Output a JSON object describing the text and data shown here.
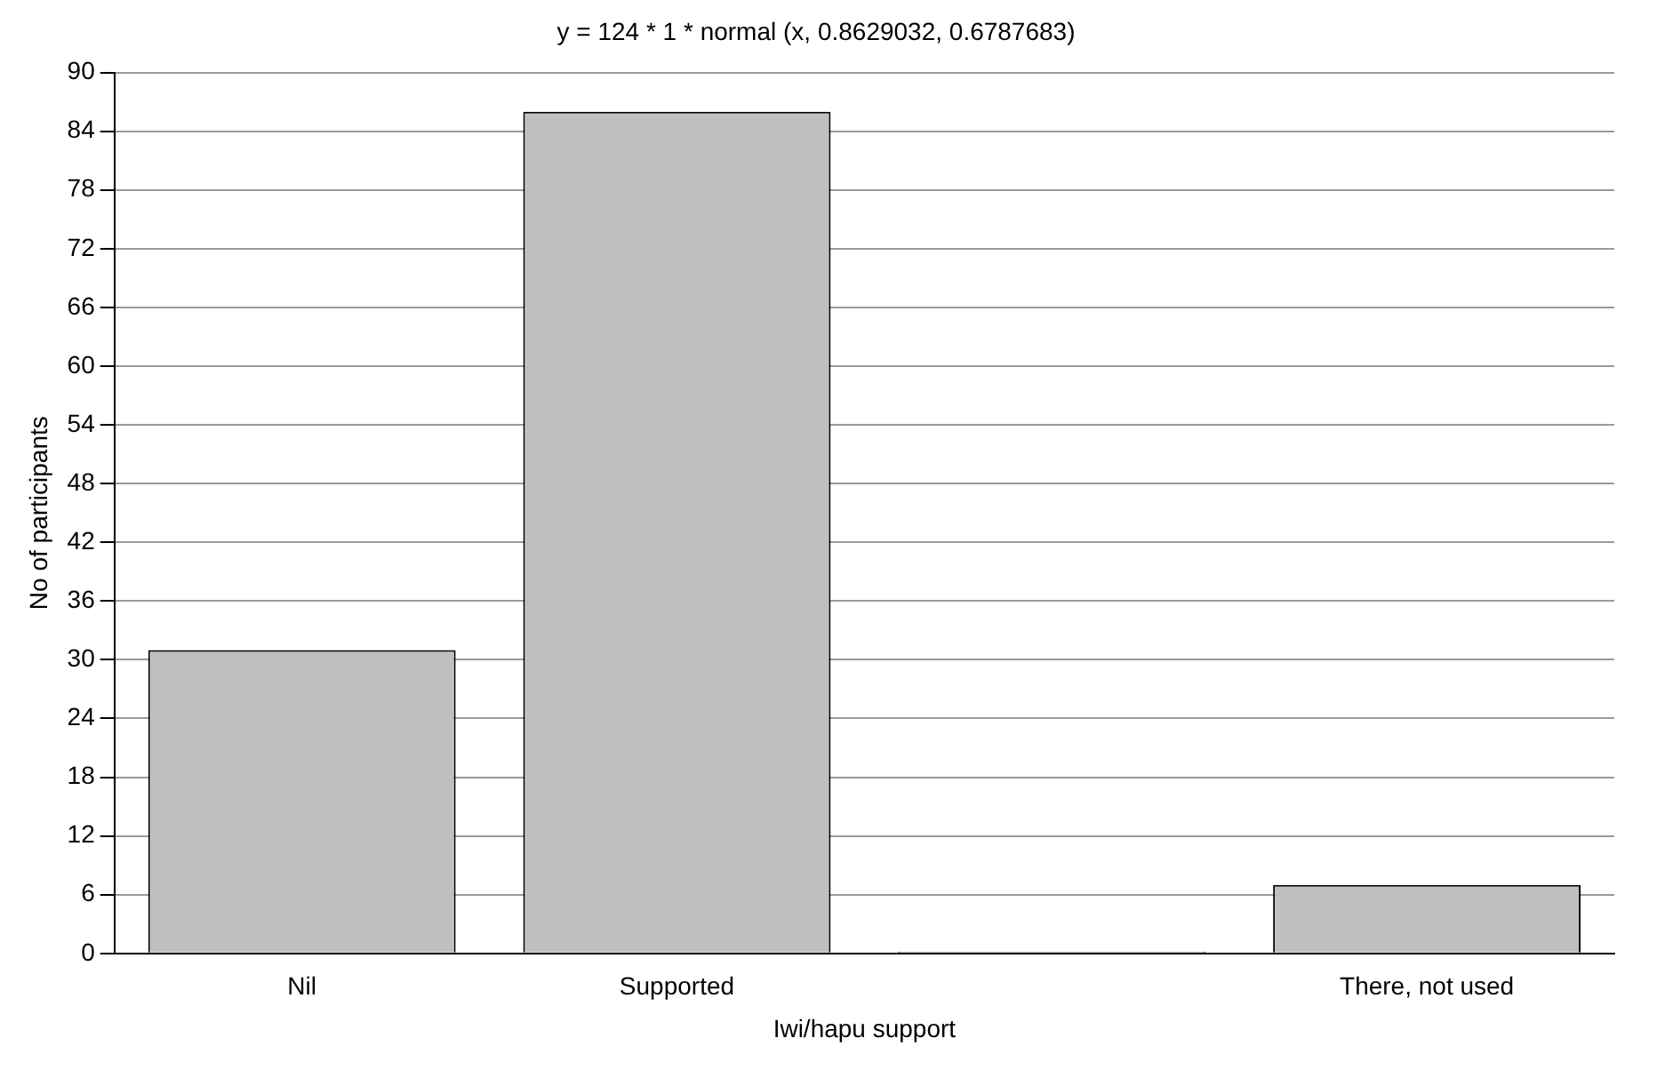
{
  "chart_data": {
    "type": "bar",
    "title": "y = 124 * 1 * normal (x, 0.8629032, 0.6787683)",
    "xlabel": "Iwi/hapu support",
    "ylabel": "No of participants",
    "categories": [
      "Nil",
      "Supported",
      null,
      "There, not used"
    ],
    "values": [
      31,
      86,
      0,
      7
    ],
    "color": "#bfbfbf",
    "ylim": [
      0,
      90
    ],
    "yticks": [
      0,
      6,
      12,
      18,
      24,
      30,
      36,
      42,
      48,
      54,
      60,
      66,
      72,
      78,
      84,
      90
    ],
    "grid": "y"
  }
}
